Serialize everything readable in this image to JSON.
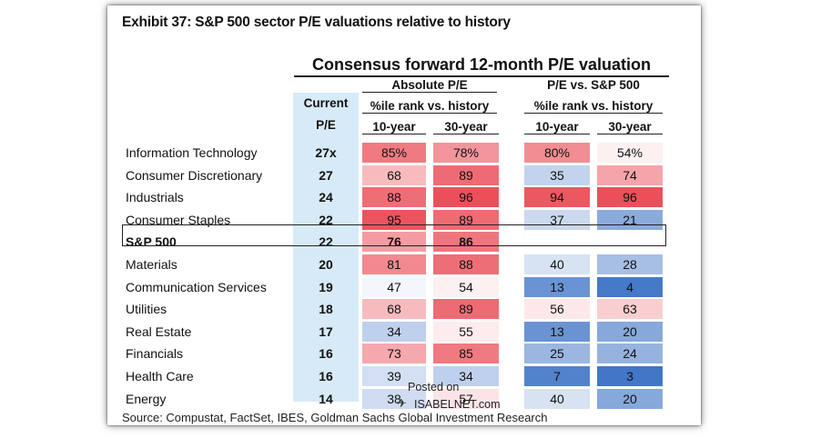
{
  "title": "Exhibit 37: S&P 500 sector P/E valuations relative to history",
  "subtitle": "Consensus forward 12-month P/E valuation",
  "headers": {
    "current": "Current",
    "pe": "P/E",
    "absolute": "Absolute P/E",
    "relative": "P/E vs. S&P 500",
    "pctile": "%ile rank vs. history",
    "ten_year": "10-year",
    "thirty_year": "30-year"
  },
  "rows": [
    {
      "name": "Information Technology",
      "pe": "27x",
      "a10": "85%",
      "a30": "78%",
      "r10": "80%",
      "r30": "54%"
    },
    {
      "name": "Consumer Discretionary",
      "pe": "27",
      "a10": "68",
      "a30": "89",
      "r10": "35",
      "r30": "74"
    },
    {
      "name": "Industrials",
      "pe": "24",
      "a10": "88",
      "a30": "96",
      "r10": "94",
      "r30": "96"
    },
    {
      "name": "Consumer Staples",
      "pe": "22",
      "a10": "95",
      "a30": "89",
      "r10": "37",
      "r30": "21"
    },
    {
      "name": "S&P 500",
      "pe": "22",
      "a10": "76",
      "a30": "86",
      "r10": "",
      "r30": ""
    },
    {
      "name": "Materials",
      "pe": "20",
      "a10": "81",
      "a30": "88",
      "r10": "40",
      "r30": "28"
    },
    {
      "name": "Communication Services",
      "pe": "19",
      "a10": "47",
      "a30": "54",
      "r10": "13",
      "r30": "4"
    },
    {
      "name": "Utilities",
      "pe": "18",
      "a10": "68",
      "a30": "89",
      "r10": "56",
      "r30": "63"
    },
    {
      "name": "Real Estate",
      "pe": "17",
      "a10": "34",
      "a30": "55",
      "r10": "13",
      "r30": "20"
    },
    {
      "name": "Financials",
      "pe": "16",
      "a10": "73",
      "a30": "85",
      "r10": "25",
      "r30": "24"
    },
    {
      "name": "Health Care",
      "pe": "16",
      "a10": "39",
      "a30": "34",
      "r10": "7",
      "r30": "3"
    },
    {
      "name": "Energy",
      "pe": "14",
      "a10": "38",
      "a30": "57",
      "r10": "40",
      "r30": "20"
    }
  ],
  "source": "Source: Compustat, FactSet, IBES, Goldman Sachs Global Investment Research",
  "watermark": {
    "line1": "Posted on",
    "line2": "ISABELNET.com"
  }
}
